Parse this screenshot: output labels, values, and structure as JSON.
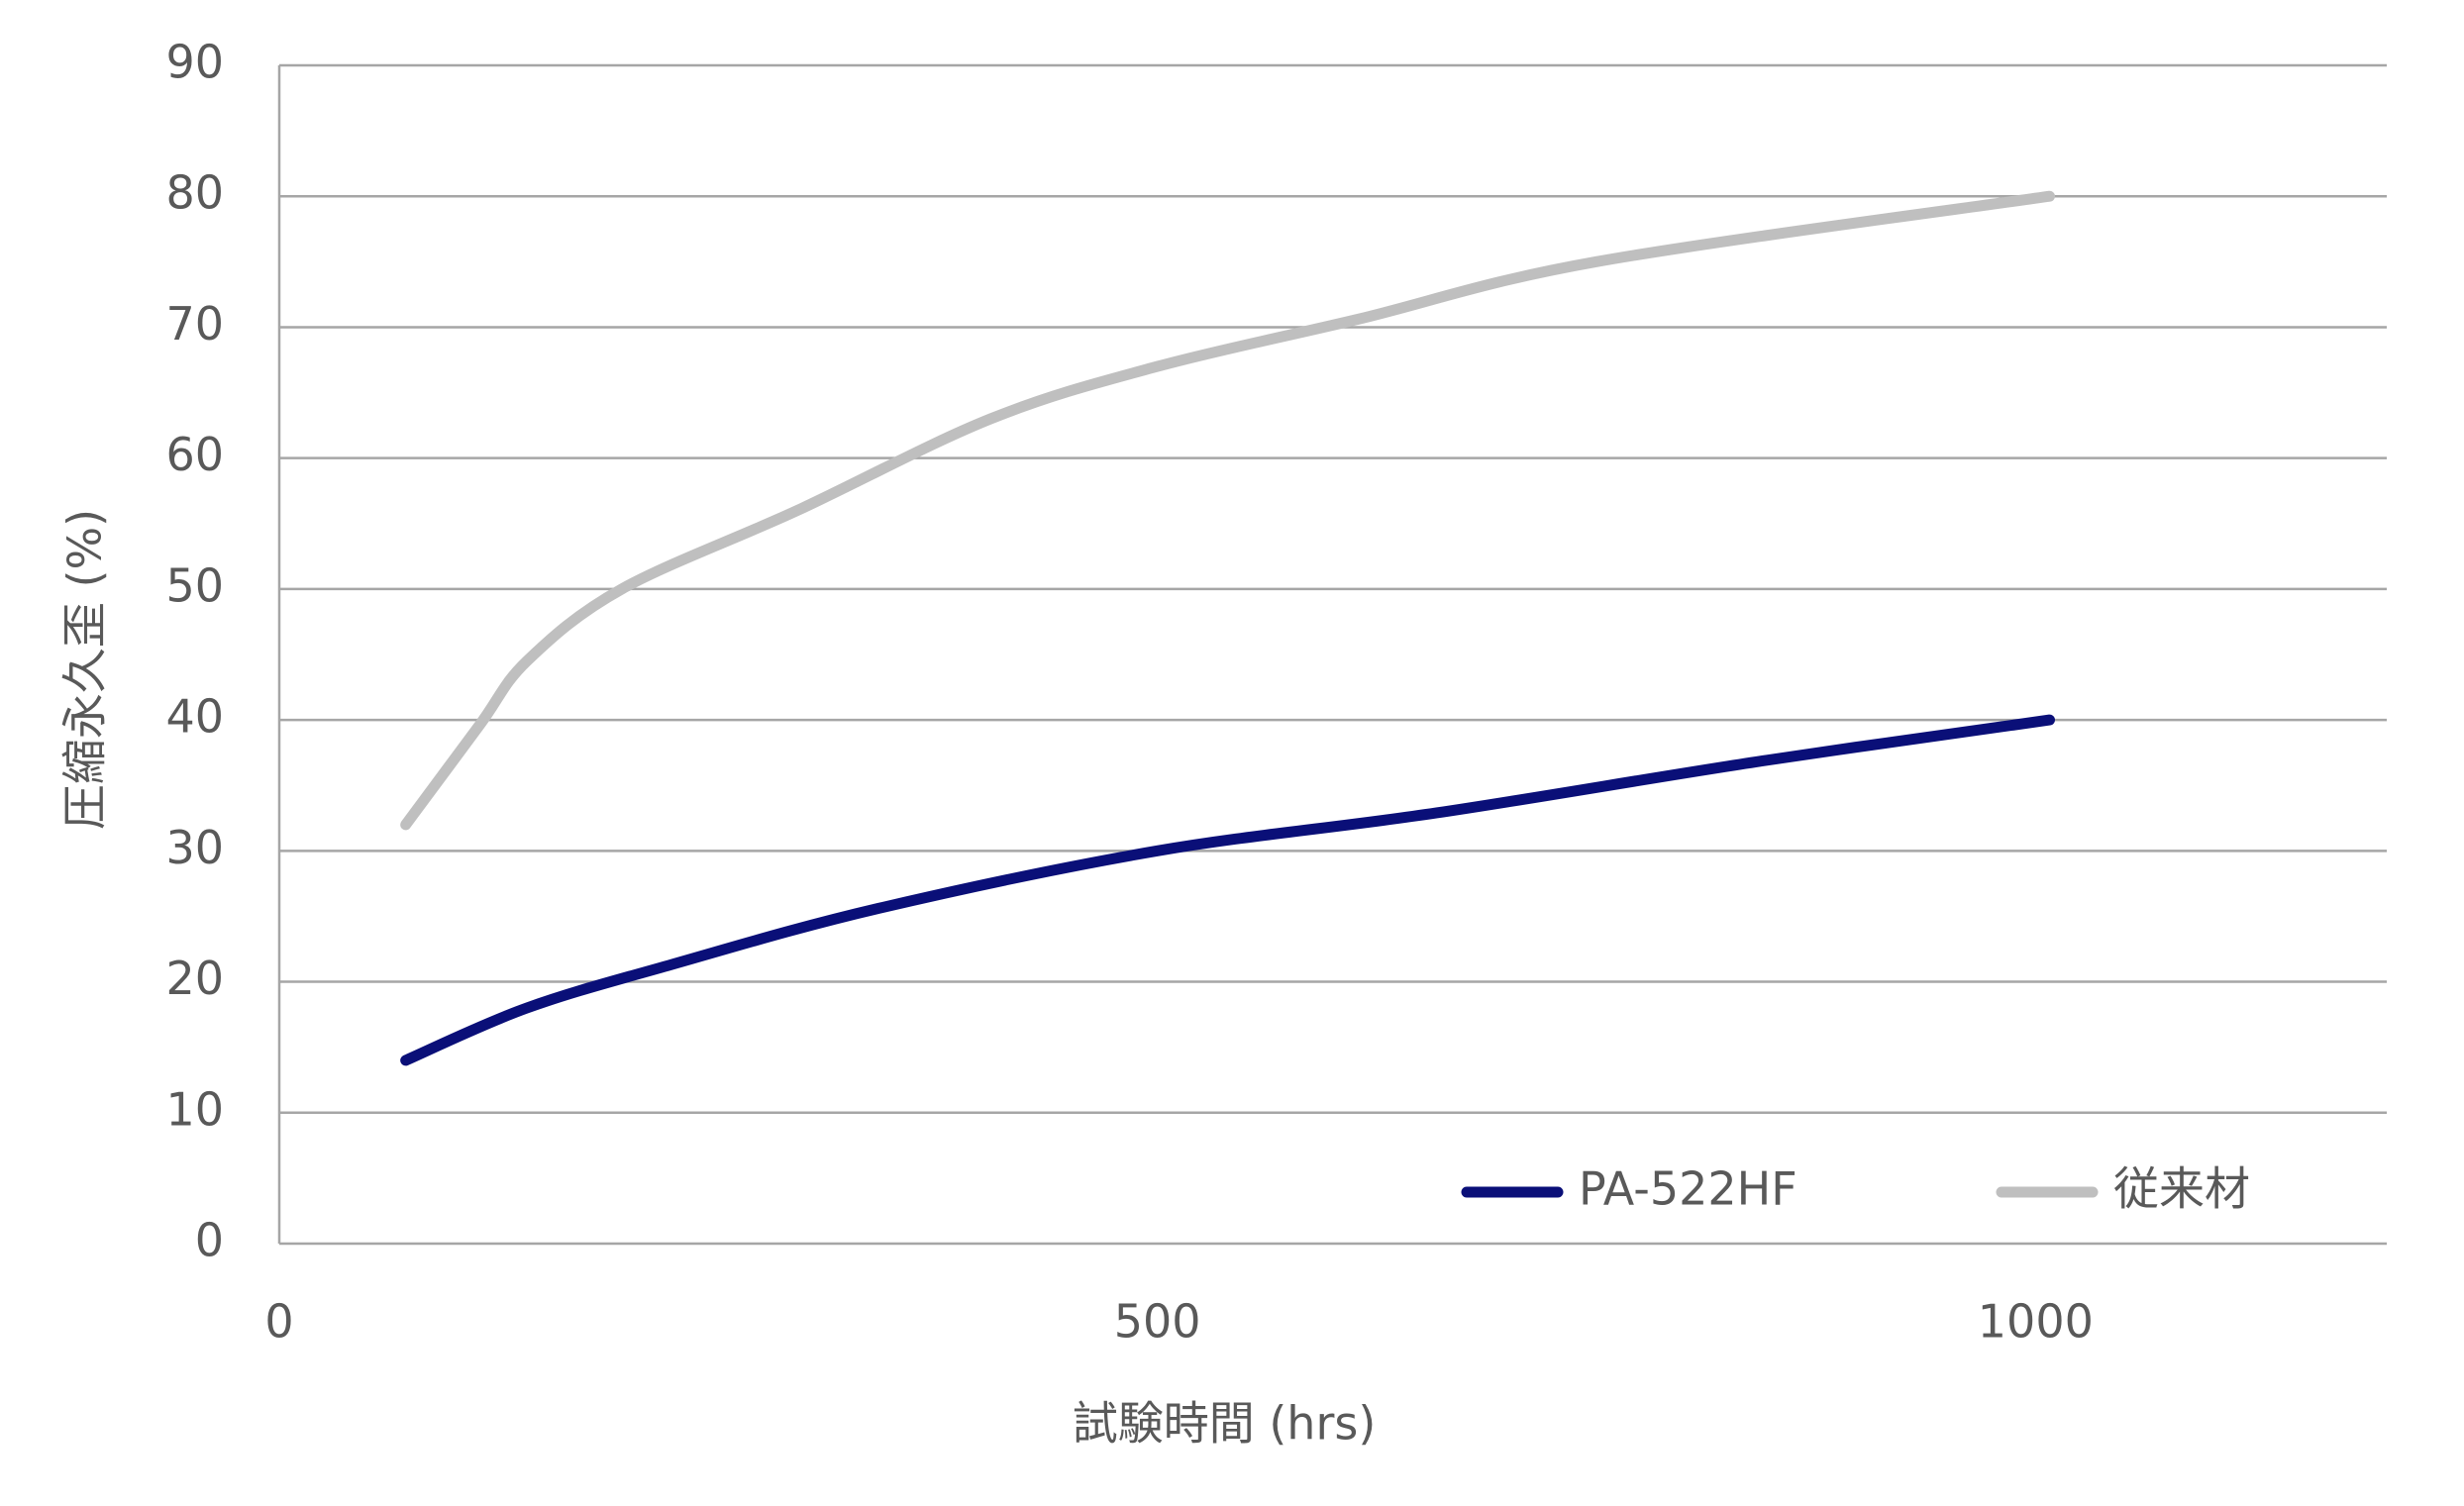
{
  "chart_data": {
    "type": "line",
    "x_label": "試験時間 (hrs)",
    "y_label": "圧縮永久歪 (%)",
    "xlim": [
      0,
      1200
    ],
    "xticks": [
      0,
      500,
      1000
    ],
    "ylim": [
      0,
      90
    ],
    "yticks": [
      0,
      10,
      20,
      30,
      40,
      50,
      60,
      70,
      80,
      90
    ],
    "grid": true,
    "legend": "bottom-right",
    "series": [
      {
        "name": "PA-522HF",
        "color": "#0a0f78",
        "x": [
          72,
          141,
          223,
          341,
          500,
          659,
          841,
          1008
        ],
        "values": [
          14,
          18,
          21.3,
          25.6,
          30,
          32.9,
          36.8,
          40
        ]
      },
      {
        "name": "従来材",
        "color": "#bfbfbf",
        "x": [
          72,
          114,
          141,
          195,
          295,
          405,
          500,
          614,
          750,
          1008
        ],
        "values": [
          32,
          39.6,
          44.5,
          50,
          56,
          63,
          67,
          70.6,
          75,
          80
        ]
      }
    ]
  }
}
